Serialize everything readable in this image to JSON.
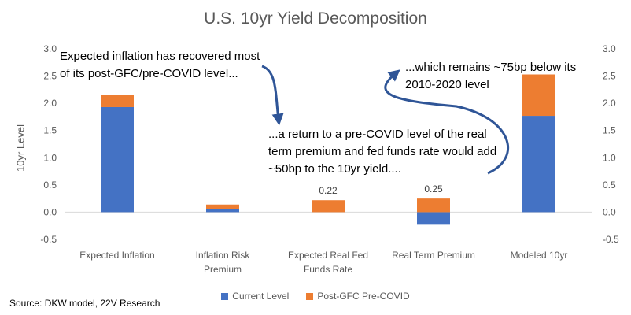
{
  "chart_data": {
    "type": "bar",
    "stacked": true,
    "title": "U.S. 10yr Yield Decomposition",
    "ylabel": "10yr Level",
    "xlabel": "",
    "ylim": [
      -0.5,
      3.0
    ],
    "yticks": [
      "-0.5",
      "0.0",
      "0.5",
      "1.0",
      "1.5",
      "2.0",
      "2.5",
      "3.0"
    ],
    "y2ticks": [
      "-0.5",
      "0.0",
      "0.5",
      "1.0",
      "1.5",
      "2.0",
      "2.5",
      "3.0"
    ],
    "categories": [
      [
        "Expected Inflation"
      ],
      [
        "Inflation Risk",
        "Premium"
      ],
      [
        "Expected Real Fed",
        "Funds Rate"
      ],
      [
        "Real Term Premium"
      ],
      [
        "Modeled 10yr"
      ]
    ],
    "series": [
      {
        "name": "Current Level",
        "color": "#4472C4",
        "values": [
          1.93,
          0.05,
          0.0,
          -0.23,
          1.77
        ]
      },
      {
        "name": "Post-GFC Pre-COVID",
        "color": "#ED7D31",
        "values": [
          0.22,
          0.09,
          0.22,
          0.25,
          0.76
        ]
      }
    ],
    "data_labels": [
      {
        "category": 2,
        "value": 0.22,
        "text": "0.22"
      },
      {
        "category": 3,
        "value": 0.25,
        "text": "0.25"
      }
    ],
    "grid": false,
    "legend_position": "bottom"
  },
  "annotations": {
    "a1": "Expected inflation has recovered most of its post-GFC/pre-COVID level...",
    "a2": "...a return to a pre-COVID level of the real term premium  and fed funds rate would add ~50bp to the 10yr yield....",
    "a3": "...which remains ~75bp  below its 2010-2020 level"
  },
  "source": "Source: DKW model, 22V Research",
  "arrow_color": "#2F5597"
}
